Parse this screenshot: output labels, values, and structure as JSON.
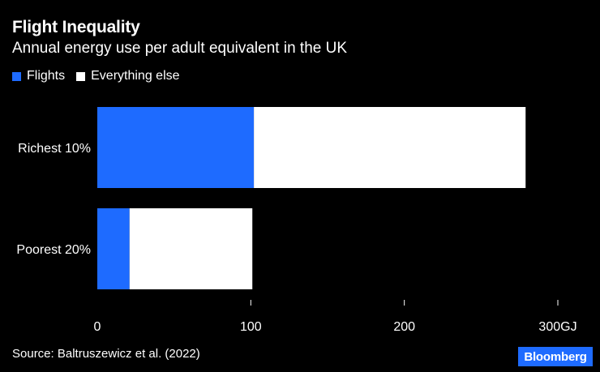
{
  "header": {
    "title": "Flight Inequality",
    "subtitle": "Annual energy use per adult equivalent in the UK"
  },
  "footer": {
    "source": "Source: Baltruszewicz et al. (2022)",
    "logo_text": "Bloomberg"
  },
  "colors": {
    "background": "#000000",
    "flights": "#1e6bff",
    "everything_else": "#ffffff",
    "text": "#ffffff"
  },
  "chart_data": {
    "type": "bar",
    "orientation": "horizontal",
    "stacked": true,
    "title": "Flight Inequality",
    "subtitle": "Annual energy use per adult equivalent in the UK",
    "categories": [
      "Richest 10%",
      "Poorest 20%"
    ],
    "series": [
      {
        "name": "Flights",
        "values": [
          102,
          21
        ],
        "color": "#1e6bff"
      },
      {
        "name": "Everything else",
        "values": [
          177,
          80
        ],
        "color": "#ffffff"
      }
    ],
    "xlim": [
      0,
      300
    ],
    "xticks": [
      0,
      100,
      200,
      300
    ],
    "xtick_labels": [
      "0",
      "100",
      "200",
      "300GJ"
    ],
    "legend_position": "top-left",
    "grid": false,
    "xlabel": "",
    "ylabel": ""
  }
}
